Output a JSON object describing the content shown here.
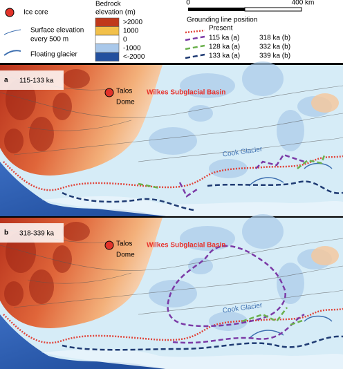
{
  "legend": {
    "ice_core": "Ice core",
    "surface_elevation": [
      "Surface elevation",
      "every 500 m"
    ],
    "floating_glacier": "Floating glacier",
    "bedrock_title": [
      "Bedrock",
      "elevation (m)"
    ],
    "bedrock_scale": [
      {
        "label": ">2000",
        "color": "#c0391b"
      },
      {
        "label": "1000",
        "color": "#f2c04a"
      },
      {
        "label": "0",
        "color": "#ffffff"
      },
      {
        "label": "-1000",
        "color": "#a9c8ea"
      },
      {
        "label": "<-2000",
        "color": "#23509e"
      }
    ],
    "scale_bar": {
      "start": "0",
      "end": "400 km"
    },
    "grounding_title": "Grounding line position",
    "grounding_present": {
      "label": "Present",
      "color": "#e0443a"
    },
    "grounding_lines": [
      {
        "labels": [
          "115 ka (a)",
          "318 ka (b)"
        ],
        "color": "#7b3aa6"
      },
      {
        "labels": [
          "128 ka (a)",
          "332 ka (b)"
        ],
        "color": "#6ab04c"
      },
      {
        "labels": [
          "133 ka (a)",
          "339 ka (b)"
        ],
        "color": "#1f3b73"
      }
    ]
  },
  "panels": [
    {
      "letter": "a",
      "range": "115-133 ka",
      "site": [
        "Talos",
        "Dome"
      ],
      "basin": "Wilkes Subglacial Basin",
      "glacier": "Cook Glacier"
    },
    {
      "letter": "b",
      "range": "318-339 ka",
      "site": [
        "Talos",
        "Dome"
      ],
      "basin": "Wilkes Subglacial Basin",
      "glacier": "Cook Glacier"
    }
  ]
}
